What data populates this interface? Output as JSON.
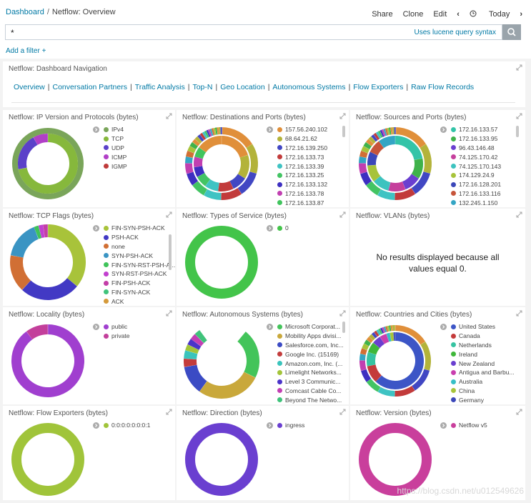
{
  "breadcrumb": {
    "parent": "Dashboard",
    "sep": "/",
    "current": "Netflow: Overview"
  },
  "topnav": {
    "share": "Share",
    "clone": "Clone",
    "edit": "Edit",
    "prev": "‹",
    "time": "Today",
    "next": "›"
  },
  "query": {
    "value": "*",
    "hint": "Uses lucene query syntax"
  },
  "add_filter": "Add a filter +",
  "nav_panel": {
    "title": "Netflow: Dashboard Navigation",
    "links": [
      "Overview",
      "Conversation Partners",
      "Traffic Analysis",
      "Top-N",
      "Geo Location",
      "Autonomous Systems",
      "Flow Exporters",
      "Raw Flow Records"
    ]
  },
  "panels": [
    {
      "title": "Netflow: IP Version and Protocols (bytes)",
      "legend": [
        {
          "label": "IPv4",
          "color": "#7aa55a"
        },
        {
          "label": "TCP",
          "color": "#86b83c"
        },
        {
          "label": "UDP",
          "color": "#5b41c9"
        },
        {
          "label": "ICMP",
          "color": "#b13fc7"
        },
        {
          "label": "IGMP",
          "color": "#bf3a3a"
        }
      ]
    },
    {
      "title": "Netflow: Destinations and Ports (bytes)",
      "legend": [
        {
          "label": "157.56.240.102",
          "color": "#e08f3a"
        },
        {
          "label": "68.64.21.62",
          "color": "#b3b33a"
        },
        {
          "label": "172.16.139.250",
          "color": "#4147c3"
        },
        {
          "label": "172.16.133.73",
          "color": "#c23b3b"
        },
        {
          "label": "172.16.133.39",
          "color": "#3fc3c3"
        },
        {
          "label": "172.16.133.25",
          "color": "#43c463"
        },
        {
          "label": "172.16.133.132",
          "color": "#3d2fc1"
        },
        {
          "label": "172.16.133.78",
          "color": "#c13fb1"
        },
        {
          "label": "172.16.133.87",
          "color": "#40c45d"
        }
      ]
    },
    {
      "title": "Netflow: Sources and Ports (bytes)",
      "legend": [
        {
          "label": "172.16.133.57",
          "color": "#33c4a8"
        },
        {
          "label": "172.16.133.95",
          "color": "#3fb24a"
        },
        {
          "label": "96.43.146.48",
          "color": "#6a3fd0"
        },
        {
          "label": "74.125.170.42",
          "color": "#c53f9c"
        },
        {
          "label": "74.125.170.143",
          "color": "#3dc3bf"
        },
        {
          "label": "174.129.24.9",
          "color": "#a7c33a"
        },
        {
          "label": "172.16.128.201",
          "color": "#3b47b9"
        },
        {
          "label": "172.16.133.116",
          "color": "#c6543a"
        },
        {
          "label": "132.245.1.150",
          "color": "#34a5c4"
        }
      ]
    },
    {
      "title": "Netflow: TCP Flags (bytes)",
      "legend": [
        {
          "label": "FIN-SYN-PSH-ACK",
          "color": "#a8c33a"
        },
        {
          "label": "PSH-ACK",
          "color": "#4239c4"
        },
        {
          "label": "none",
          "color": "#d16f34"
        },
        {
          "label": "SYN-PSH-ACK",
          "color": "#3a94c3"
        },
        {
          "label": "FIN-SYN-RST-PSH-A...",
          "color": "#3fc35a"
        },
        {
          "label": "SYN-RST-PSH-ACK",
          "color": "#c23fcf"
        },
        {
          "label": "FIN-PSH-ACK",
          "color": "#c33ea7"
        },
        {
          "label": "FIN-SYN-ACK",
          "color": "#3fc37b"
        },
        {
          "label": "ACK",
          "color": "#d59a3a"
        }
      ]
    },
    {
      "title": "Netflow: Types of Service (bytes)",
      "legend": [
        {
          "label": "0",
          "color": "#43c44a"
        }
      ]
    },
    {
      "title": "Netflow: VLANs (bytes)",
      "message": "No results displayed because all values equal 0."
    },
    {
      "title": "Netflow: Locality (bytes)",
      "legend": [
        {
          "label": "public",
          "color": "#a03fcf"
        },
        {
          "label": "private",
          "color": "#c33f9b"
        }
      ]
    },
    {
      "title": "Netflow: Autonomous Systems (bytes)",
      "legend": [
        {
          "label": "Microsoft Corporat...",
          "color": "#43c45a"
        },
        {
          "label": "Mobility Apps divisi...",
          "color": "#c9a83b"
        },
        {
          "label": "Salesforce.com, Inc...",
          "color": "#3b4bc4"
        },
        {
          "label": "Google Inc. (15169)",
          "color": "#c33c3c"
        },
        {
          "label": "Amazon.com, Inc. (...",
          "color": "#3ac4bc"
        },
        {
          "label": "Limelight Networks...",
          "color": "#a3c43a"
        },
        {
          "label": "Level 3 Communic...",
          "color": "#4a33c9"
        },
        {
          "label": "Comcast Cable Co...",
          "color": "#c23fb3"
        },
        {
          "label": "Beyond The Netwo...",
          "color": "#3fc37a"
        }
      ]
    },
    {
      "title": "Netflow: Countries and Cities (bytes)",
      "legend": [
        {
          "label": "United States",
          "color": "#3c55c6"
        },
        {
          "label": "Canada",
          "color": "#c43a3a"
        },
        {
          "label": "Netherlands",
          "color": "#36c3a1"
        },
        {
          "label": "Ireland",
          "color": "#3fb73a"
        },
        {
          "label": "New Zealand",
          "color": "#6a3fd0"
        },
        {
          "label": "Antigua and Barbu...",
          "color": "#c93fae"
        },
        {
          "label": "Australia",
          "color": "#36bfc6"
        },
        {
          "label": "China",
          "color": "#a8c43a"
        },
        {
          "label": "Germany",
          "color": "#3b47b9"
        }
      ]
    },
    {
      "title": "Netflow: Flow Exporters (bytes)",
      "legend": [
        {
          "label": "0:0:0:0:0:0:0:1",
          "color": "#a0c43a"
        }
      ]
    },
    {
      "title": "Netflow: Direction (bytes)",
      "legend": [
        {
          "label": "ingress",
          "color": "#6a3fd0"
        }
      ]
    },
    {
      "title": "Netflow: Version (bytes)",
      "legend": [
        {
          "label": "Netflow v5",
          "color": "#c93f9c"
        }
      ]
    }
  ],
  "watermark": "https://blog.csdn.net/u012549626"
}
